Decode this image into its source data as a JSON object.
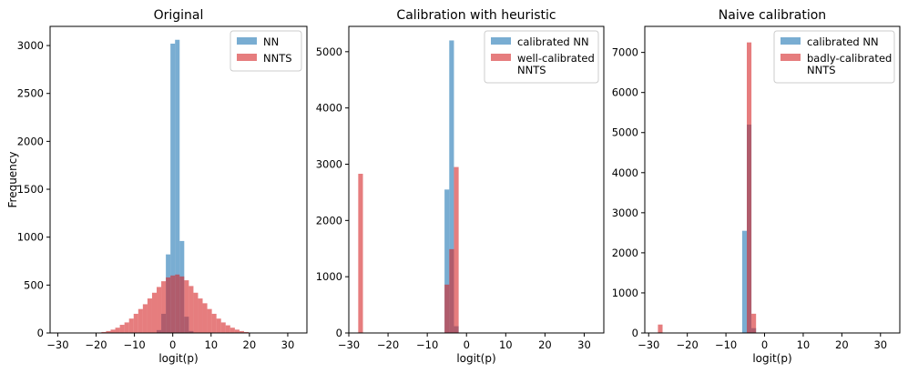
{
  "chart_data": [
    {
      "type": "bar",
      "title": "Original",
      "xlabel": "logit(p)",
      "ylabel": "Frequency",
      "xlim": [
        -32,
        35
      ],
      "ylim": [
        0,
        3200
      ],
      "xticks": [
        -30,
        -20,
        -10,
        0,
        10,
        20,
        30
      ],
      "yticks": [
        0,
        500,
        1000,
        1500,
        2000,
        2500,
        3000
      ],
      "bin_width": 1.2,
      "legend_position": "top-right",
      "series": [
        {
          "name": "NN",
          "color": "#1f77b4",
          "bins": [
            [
              -4.2,
              30
            ],
            [
              -3.0,
              200
            ],
            [
              -1.8,
              820
            ],
            [
              -0.6,
              3020
            ],
            [
              0.6,
              3060
            ],
            [
              1.8,
              960
            ],
            [
              3.0,
              170
            ],
            [
              4.2,
              20
            ]
          ]
        },
        {
          "name": "NNTS",
          "color": "#d62728",
          "bins": [
            [
              -18.6,
              10
            ],
            [
              -17.4,
              20
            ],
            [
              -16.2,
              35
            ],
            [
              -15.0,
              55
            ],
            [
              -13.8,
              85
            ],
            [
              -12.6,
              110
            ],
            [
              -11.4,
              150
            ],
            [
              -10.2,
              200
            ],
            [
              -9.0,
              250
            ],
            [
              -7.8,
              300
            ],
            [
              -6.6,
              360
            ],
            [
              -5.4,
              420
            ],
            [
              -4.2,
              480
            ],
            [
              -3.0,
              540
            ],
            [
              -1.8,
              580
            ],
            [
              -0.6,
              600
            ],
            [
              0.6,
              610
            ],
            [
              1.8,
              590
            ],
            [
              3.0,
              550
            ],
            [
              4.2,
              490
            ],
            [
              5.4,
              420
            ],
            [
              6.6,
              360
            ],
            [
              7.8,
              310
            ],
            [
              9.0,
              250
            ],
            [
              10.2,
              200
            ],
            [
              11.4,
              150
            ],
            [
              12.6,
              110
            ],
            [
              13.8,
              80
            ],
            [
              15.0,
              55
            ],
            [
              16.2,
              35
            ],
            [
              17.4,
              20
            ],
            [
              18.6,
              10
            ]
          ]
        }
      ]
    },
    {
      "type": "bar",
      "title": "Calibration with heuristic",
      "xlabel": "logit(p)",
      "ylabel": "",
      "xlim": [
        -30,
        35
      ],
      "ylim": [
        0,
        5450
      ],
      "xticks": [
        -30,
        -20,
        -10,
        0,
        10,
        20,
        30
      ],
      "yticks": [
        0,
        1000,
        2000,
        3000,
        4000,
        5000
      ],
      "bin_width": 1.2,
      "legend_position": "top-right",
      "series": [
        {
          "name": "calibrated NN",
          "color": "#1f77b4",
          "bins": [
            [
              -5.6,
              2550
            ],
            [
              -4.4,
              5200
            ],
            [
              -3.2,
              120
            ]
          ]
        },
        {
          "name": "well-calibrated NNTS",
          "color": "#d62728",
          "bins": [
            [
              -27.6,
              2830
            ],
            [
              -5.6,
              860
            ],
            [
              -4.4,
              1490
            ],
            [
              -3.2,
              2950
            ]
          ]
        }
      ]
    },
    {
      "type": "bar",
      "title": "Naive calibration",
      "xlabel": "logit(p)",
      "ylabel": "",
      "xlim": [
        -31,
        35
      ],
      "ylim": [
        0,
        7650
      ],
      "xticks": [
        -30,
        -20,
        -10,
        0,
        10,
        20,
        30
      ],
      "yticks": [
        0,
        1000,
        2000,
        3000,
        4000,
        5000,
        6000,
        7000
      ],
      "bin_width": 1.2,
      "legend_position": "top-right",
      "series": [
        {
          "name": "calibrated NN",
          "color": "#1f77b4",
          "bins": [
            [
              -5.8,
              2550
            ],
            [
              -4.6,
              5200
            ],
            [
              -3.4,
              120
            ]
          ]
        },
        {
          "name": "badly-calibrated NNTS",
          "color": "#d62728",
          "bins": [
            [
              -27.6,
              210
            ],
            [
              -4.6,
              7250
            ],
            [
              -3.4,
              480
            ]
          ]
        }
      ]
    }
  ]
}
